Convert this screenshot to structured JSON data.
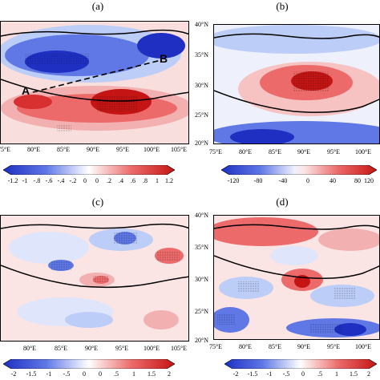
{
  "panels": [
    {
      "label": "(a)",
      "lon_ticks": [
        "75°E",
        "80°E",
        "85°E",
        "90°E",
        "95°E",
        "100°E",
        "105°E"
      ],
      "lat_ticks": []
    },
    {
      "label": "(b)",
      "lon_ticks": [
        "75°E",
        "80°E",
        "85°E",
        "90°E",
        "95°E",
        "100°E"
      ],
      "lat_ticks": [
        "40°N",
        "35°N",
        "30°N",
        "25°N",
        "20°N"
      ]
    },
    {
      "label": "(c)",
      "lon_ticks": [
        "80°E",
        "85°E",
        "90°E",
        "95°E",
        "100°E",
        "105°E"
      ],
      "lat_ticks": []
    },
    {
      "label": "(d)",
      "lon_ticks": [
        "75°E",
        "80°E",
        "85°E",
        "90°E",
        "95°E",
        "100°E"
      ],
      "lat_ticks": [
        "40°N",
        "35°N",
        "30°N",
        "25°N",
        "20°N"
      ]
    }
  ],
  "annotations": {
    "point_a": "A",
    "point_b": "B"
  },
  "colorbars": [
    {
      "ticks": [
        "-1.2",
        "-1",
        "-.8",
        "-.6",
        "-.4",
        "-.2",
        "0",
        "0",
        ".2",
        ".4",
        ".6",
        ".8",
        "1",
        "1.2"
      ]
    },
    {
      "ticks": [
        "-120",
        "-80",
        "-40",
        "0",
        "40",
        "80",
        "120"
      ]
    },
    {
      "ticks": [
        "-2",
        "-1.5",
        "-1",
        "-.5",
        "0",
        "0",
        ".5",
        "1",
        "1.5",
        "2"
      ]
    },
    {
      "ticks": [
        "-2",
        "-1.5",
        "-1",
        "-.5",
        "0",
        ".5",
        "1",
        "1.5",
        "2"
      ]
    }
  ],
  "colors": {
    "dark_blue": "#1e2fc2",
    "mid_blue": "#5f78e6",
    "light_blue": "#bccdf7",
    "white": "#ffffff",
    "light_red": "#f6c2c2",
    "mid_red": "#ec6a6a",
    "dark_red": "#c51414"
  }
}
